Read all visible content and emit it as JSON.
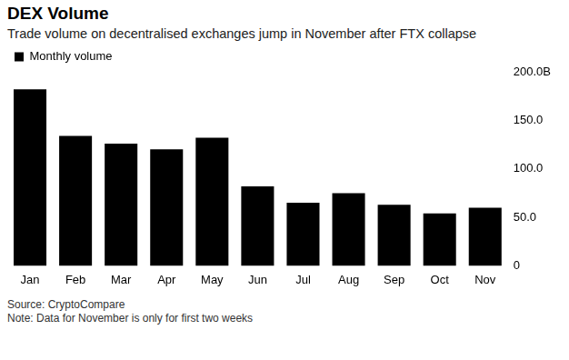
{
  "chart_data": {
    "type": "bar",
    "title": "DEX Volume",
    "subtitle": "Trade volume on decentralised exchanges jump in November after FTX collapse",
    "categories": [
      "Jan",
      "Feb",
      "Mar",
      "Apr",
      "May",
      "Jun",
      "Jul",
      "Aug",
      "Sep",
      "Oct",
      "Nov"
    ],
    "series": [
      {
        "name": "Monthly volume",
        "color": "#000000",
        "values": [
          182,
          134,
          126,
          120,
          132,
          82,
          65,
          75,
          63,
          54,
          60
        ]
      }
    ],
    "ylim": [
      0,
      200
    ],
    "yticks": [
      0,
      {
        "value": 50,
        "label": "50.0"
      },
      {
        "value": 100,
        "label": "100.0"
      },
      {
        "value": 150,
        "label": "150.0"
      },
      {
        "value": 200,
        "label": "200.0B"
      }
    ],
    "grid": false,
    "legend": "top-left",
    "source": "Source: CryptoCompare",
    "note": "Note: Data for November is only for first two weeks"
  }
}
